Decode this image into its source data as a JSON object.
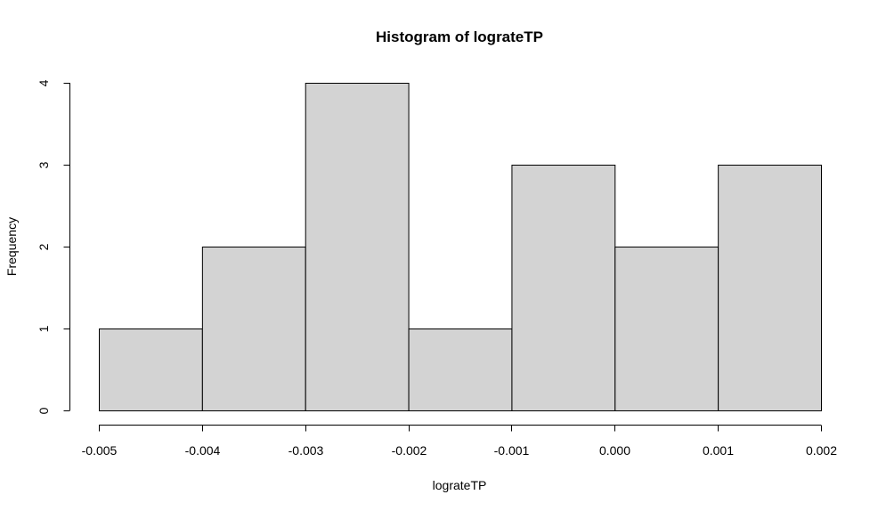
{
  "chart_data": {
    "type": "bar",
    "title": "Histogram of lograteTP",
    "xlabel": "lograteTP",
    "ylabel": "Frequency",
    "bin_edges": [
      -0.005,
      -0.004,
      -0.003,
      -0.002,
      -0.001,
      0.0,
      0.001,
      0.002
    ],
    "values": [
      1,
      2,
      4,
      1,
      3,
      2,
      3
    ],
    "xlim": [
      -0.005,
      0.002
    ],
    "ylim": [
      0,
      4
    ],
    "x_ticks": [
      "-0.005",
      "-0.004",
      "-0.003",
      "-0.002",
      "-0.001",
      "0.000",
      "0.001",
      "0.002"
    ],
    "y_ticks": [
      "0",
      "1",
      "2",
      "3",
      "4"
    ],
    "bar_color": "#d3d3d3",
    "grid": false,
    "legend": "none"
  }
}
